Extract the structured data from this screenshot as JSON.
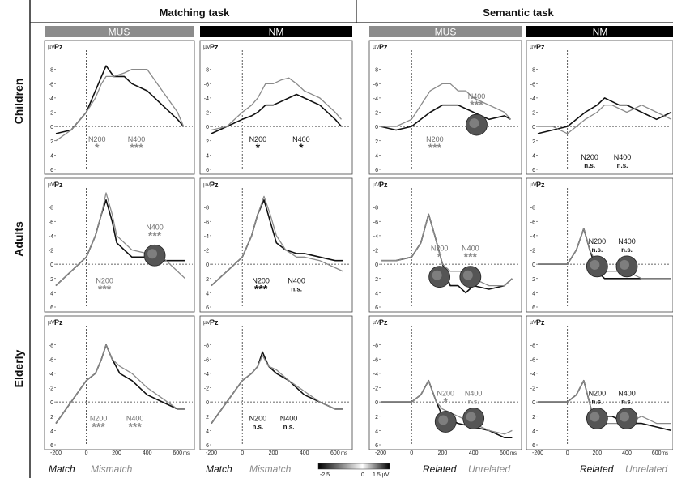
{
  "header": {
    "tasks": [
      "Matching task",
      "Semantic task"
    ],
    "conditions": [
      "MUS",
      "NM",
      "MUS",
      "NM"
    ]
  },
  "rows": [
    "Children",
    "Adults",
    "Elderly"
  ],
  "panel_text": {
    "electrode": "Pz",
    "unit": "µV",
    "y_ticks": [
      "-8",
      "-6",
      "-4",
      "-2",
      "0",
      "2",
      "4",
      "6"
    ],
    "x_ticks": [
      "-200",
      "0",
      "200",
      "400",
      "600"
    ],
    "x_unit": "ms"
  },
  "legends": {
    "matching_col1": [
      "Match",
      "Mismatch"
    ],
    "matching_col2": [
      "Match",
      "Mismatch"
    ],
    "semantic_col1": [
      "Related",
      "Unrelated"
    ],
    "semantic_col2": [
      "Related",
      "Unrelated"
    ]
  },
  "colorbar": {
    "min": "-2.5",
    "mid": "0",
    "max": "1.5 µV"
  },
  "colors": {
    "dark": "#111111",
    "light": "#8a8a8a",
    "mus_header": "#8c8c8c",
    "nm_header": "#000000"
  },
  "chart_data": [
    {
      "type": "line",
      "id": "children-matching-mus",
      "ylim": [
        6,
        -10
      ],
      "xlim": [
        -200,
        700
      ],
      "series": [
        {
          "color": "dark",
          "x": [
            -200,
            -100,
            0,
            60,
            100,
            130,
            180,
            250,
            300,
            400,
            500,
            600,
            640
          ],
          "values": [
            1,
            0.5,
            -2,
            -5,
            -7,
            -8.5,
            -7,
            -7,
            -6,
            -5,
            -3,
            -1,
            0
          ]
        },
        {
          "color": "light",
          "x": [
            -200,
            -100,
            0,
            60,
            100,
            130,
            180,
            250,
            300,
            400,
            500,
            600,
            640
          ],
          "values": [
            2,
            0.5,
            -2,
            -4,
            -6,
            -7,
            -7,
            -7.5,
            -8,
            -8,
            -5,
            -2,
            0
          ]
        }
      ],
      "annotations": [
        {
          "label": "N200",
          "stars": "*",
          "x": 70,
          "y": 1
        },
        {
          "label": "N400",
          "stars": "***",
          "x": 330,
          "y": 1
        }
      ]
    },
    {
      "type": "line",
      "id": "children-matching-nm",
      "ylim": [
        6,
        -10
      ],
      "xlim": [
        -200,
        700
      ],
      "series": [
        {
          "color": "dark",
          "x": [
            -200,
            -100,
            0,
            60,
            100,
            150,
            200,
            250,
            300,
            350,
            400,
            500,
            600,
            640
          ],
          "values": [
            1,
            0,
            -1,
            -1.5,
            -2,
            -3,
            -3,
            -3.5,
            -4,
            -4.5,
            -4,
            -3,
            -1,
            0
          ]
        },
        {
          "color": "light",
          "x": [
            -200,
            -100,
            0,
            60,
            100,
            150,
            200,
            250,
            300,
            350,
            400,
            500,
            600,
            640
          ],
          "values": [
            0.5,
            0,
            -2,
            -3,
            -4,
            -6,
            -6,
            -6.5,
            -6.8,
            -6,
            -5,
            -4,
            -2,
            -1
          ]
        }
      ],
      "annotations": [
        {
          "label": "N200",
          "stars": "*",
          "x": 100,
          "y": 1
        },
        {
          "label": "N400",
          "stars": "*",
          "x": 380,
          "y": 1
        }
      ]
    },
    {
      "type": "line",
      "id": "children-semantic-mus",
      "ylim": [
        6,
        -10
      ],
      "xlim": [
        -200,
        700
      ],
      "series": [
        {
          "color": "dark",
          "x": [
            -200,
            -100,
            0,
            60,
            120,
            200,
            250,
            300,
            350,
            400,
            500,
            600,
            640
          ],
          "values": [
            0,
            0.5,
            0,
            -1,
            -2,
            -3,
            -3,
            -3,
            -2.5,
            -2,
            -1,
            -1.5,
            -1
          ]
        },
        {
          "color": "light",
          "x": [
            -200,
            -100,
            0,
            60,
            120,
            200,
            250,
            300,
            350,
            400,
            500,
            600,
            640
          ],
          "values": [
            0,
            0,
            -1,
            -3,
            -5,
            -6,
            -6,
            -5,
            -5,
            -4,
            -3,
            -2,
            -1
          ]
        }
      ],
      "annotations": [
        {
          "label": "N200",
          "stars": "***",
          "x": 150,
          "y": 1
        },
        {
          "label": "N400",
          "stars": "***",
          "x": 420,
          "y": -5
        }
      ]
    },
    {
      "type": "line",
      "id": "children-semantic-nm",
      "ylim": [
        6,
        -10
      ],
      "xlim": [
        -200,
        700
      ],
      "series": [
        {
          "color": "dark",
          "x": [
            -200,
            -100,
            0,
            60,
            120,
            200,
            250,
            300,
            350,
            400,
            500,
            600,
            700
          ],
          "values": [
            1,
            0.5,
            0,
            -1,
            -2,
            -3,
            -4,
            -3.5,
            -3,
            -3,
            -2,
            -1,
            -2
          ]
        },
        {
          "color": "light",
          "x": [
            -200,
            -100,
            0,
            60,
            120,
            200,
            250,
            300,
            350,
            400,
            500,
            600,
            700
          ],
          "values": [
            0,
            0,
            1,
            0,
            -1,
            -2,
            -3,
            -3,
            -2.5,
            -2,
            -3,
            -2,
            -1
          ]
        }
      ],
      "annotations": [
        {
          "label": "N200",
          "stars": "n.s.",
          "x": 150,
          "y": 3.5
        },
        {
          "label": "N400",
          "stars": "n.s.",
          "x": 370,
          "y": 3.5
        }
      ]
    },
    {
      "type": "line",
      "id": "adults-matching-mus",
      "ylim": [
        6,
        -10
      ],
      "xlim": [
        -200,
        700
      ],
      "series": [
        {
          "color": "dark",
          "x": [
            -200,
            -100,
            0,
            60,
            100,
            130,
            170,
            200,
            250,
            300,
            400,
            500,
            600,
            650
          ],
          "values": [
            3,
            1,
            -1,
            -4,
            -7,
            -9,
            -6,
            -3,
            -2,
            -1,
            -1,
            -0.5,
            -0.5,
            -0.5
          ]
        },
        {
          "color": "light",
          "x": [
            -200,
            -100,
            0,
            60,
            100,
            130,
            170,
            200,
            250,
            300,
            400,
            500,
            600,
            650
          ],
          "values": [
            3,
            1,
            -1,
            -4,
            -7,
            -10,
            -7,
            -4,
            -3,
            -2,
            -1.5,
            -1,
            1,
            2
          ]
        }
      ],
      "annotations": [
        {
          "label": "N200",
          "stars": "***",
          "x": 120,
          "y": 1.5
        },
        {
          "label": "N400",
          "stars": "***",
          "x": 450,
          "y": -6
        }
      ]
    },
    {
      "type": "line",
      "id": "adults-matching-nm",
      "ylim": [
        6,
        -10
      ],
      "xlim": [
        -200,
        700
      ],
      "series": [
        {
          "color": "dark",
          "x": [
            -200,
            -100,
            0,
            60,
            100,
            140,
            180,
            220,
            280,
            350,
            400,
            500,
            600,
            650
          ],
          "values": [
            3,
            1,
            -1,
            -4,
            -7,
            -9,
            -6,
            -3,
            -2,
            -1.5,
            -1.5,
            -1,
            -0.5,
            -0.5
          ]
        },
        {
          "color": "light",
          "x": [
            -200,
            -100,
            0,
            60,
            100,
            140,
            180,
            220,
            280,
            350,
            400,
            500,
            600,
            650
          ],
          "values": [
            3,
            1,
            -1,
            -4,
            -7,
            -9.5,
            -7,
            -4,
            -2,
            -1,
            -1,
            -0.5,
            0.5,
            1
          ]
        }
      ],
      "annotations": [
        {
          "label": "N200",
          "stars": "***",
          "x": 120,
          "y": 1.5
        },
        {
          "label": "N400",
          "stars": "n.s.",
          "x": 350,
          "y": 1.5
        }
      ]
    },
    {
      "type": "line",
      "id": "adults-semantic-mus",
      "ylim": [
        6,
        -10
      ],
      "xlim": [
        -200,
        700
      ],
      "series": [
        {
          "color": "dark",
          "x": [
            -200,
            -100,
            0,
            60,
            110,
            150,
            200,
            250,
            300,
            350,
            400,
            500,
            600,
            650
          ],
          "values": [
            -0.5,
            -0.5,
            -1,
            -3,
            -7,
            -4,
            0,
            3,
            3,
            4,
            3,
            3.5,
            3,
            2
          ]
        },
        {
          "color": "light",
          "x": [
            -200,
            -100,
            0,
            60,
            110,
            150,
            200,
            250,
            300,
            350,
            400,
            500,
            600,
            650
          ],
          "values": [
            -0.5,
            -0.5,
            -1,
            -3,
            -7,
            -4,
            0,
            1,
            1,
            1,
            2,
            3,
            3,
            2
          ]
        }
      ],
      "annotations": [
        {
          "label": "N200",
          "stars": "*",
          "x": 180,
          "y": -3
        },
        {
          "label": "N400",
          "stars": "***",
          "x": 380,
          "y": -3
        }
      ]
    },
    {
      "type": "line",
      "id": "adults-semantic-nm",
      "ylim": [
        6,
        -10
      ],
      "xlim": [
        -200,
        700
      ],
      "series": [
        {
          "color": "dark",
          "x": [
            -200,
            -100,
            0,
            60,
            110,
            150,
            200,
            250,
            300,
            400,
            500,
            600,
            700
          ],
          "values": [
            0,
            0,
            0,
            -2,
            -5,
            -2,
            1,
            2,
            2,
            2,
            2,
            2,
            2
          ]
        },
        {
          "color": "light",
          "x": [
            -200,
            -100,
            0,
            60,
            110,
            150,
            200,
            250,
            300,
            400,
            500,
            600,
            700
          ],
          "values": [
            0,
            0,
            0,
            -2,
            -5,
            -2,
            0,
            1,
            1,
            1,
            2,
            2,
            2
          ]
        }
      ],
      "annotations": [
        {
          "label": "N200",
          "stars": "n.s.",
          "x": 200,
          "y": -4
        },
        {
          "label": "N400",
          "stars": "n.s.",
          "x": 400,
          "y": -4
        }
      ]
    },
    {
      "type": "line",
      "id": "elderly-matching-mus",
      "ylim": [
        6,
        -10
      ],
      "xlim": [
        -200,
        700
      ],
      "series": [
        {
          "color": "dark",
          "x": [
            -200,
            -100,
            0,
            60,
            100,
            130,
            170,
            220,
            300,
            400,
            500,
            600,
            650
          ],
          "values": [
            3,
            0,
            -3,
            -4,
            -6,
            -8,
            -6,
            -4,
            -3,
            -1,
            0,
            1,
            1
          ]
        },
        {
          "color": "light",
          "x": [
            -200,
            -100,
            0,
            60,
            100,
            130,
            170,
            220,
            300,
            400,
            500,
            600,
            650
          ],
          "values": [
            3,
            0,
            -3,
            -4,
            -6,
            -8,
            -6,
            -5,
            -4,
            -2,
            -0.5,
            1,
            1
          ]
        }
      ],
      "annotations": [
        {
          "label": "N200",
          "stars": "***",
          "x": 80,
          "y": 1.5
        },
        {
          "label": "N400",
          "stars": "***",
          "x": 320,
          "y": 1.5
        }
      ]
    },
    {
      "type": "line",
      "id": "elderly-matching-nm",
      "ylim": [
        6,
        -10
      ],
      "xlim": [
        -200,
        700
      ],
      "series": [
        {
          "color": "dark",
          "x": [
            -200,
            -100,
            0,
            60,
            100,
            130,
            170,
            220,
            300,
            400,
            500,
            600,
            650
          ],
          "values": [
            3,
            0,
            -3,
            -4,
            -5,
            -7,
            -5,
            -4,
            -3,
            -1,
            0,
            1,
            1
          ]
        },
        {
          "color": "light",
          "x": [
            -200,
            -100,
            0,
            60,
            100,
            130,
            170,
            220,
            300,
            400,
            500,
            600,
            650
          ],
          "values": [
            3,
            0,
            -3,
            -4,
            -5,
            -6.5,
            -5,
            -4.5,
            -3,
            -1.5,
            0,
            1,
            1
          ]
        }
      ],
      "annotations": [
        {
          "label": "N200",
          "stars": "n.s.",
          "x": 100,
          "y": 1.5
        },
        {
          "label": "N400",
          "stars": "n.s.",
          "x": 300,
          "y": 1.5
        }
      ]
    },
    {
      "type": "line",
      "id": "elderly-semantic-mus",
      "ylim": [
        6,
        -10
      ],
      "xlim": [
        -200,
        700
      ],
      "series": [
        {
          "color": "dark",
          "x": [
            -200,
            -100,
            0,
            60,
            110,
            160,
            200,
            300,
            400,
            500,
            600,
            650
          ],
          "values": [
            0,
            0,
            0,
            -1,
            -3,
            0,
            2,
            3,
            3.5,
            4,
            5,
            5
          ]
        },
        {
          "color": "light",
          "x": [
            -200,
            -100,
            0,
            60,
            110,
            160,
            200,
            300,
            400,
            500,
            600,
            650
          ],
          "values": [
            0,
            0,
            0,
            -1,
            -3,
            0,
            1,
            2,
            3,
            4,
            4.5,
            4
          ]
        }
      ],
      "annotations": [
        {
          "label": "N200",
          "stars": "*",
          "x": 220,
          "y": -2
        },
        {
          "label": "N400",
          "stars": "n.s.",
          "x": 400,
          "y": -2
        }
      ]
    },
    {
      "type": "line",
      "id": "elderly-semantic-nm",
      "ylim": [
        6,
        -10
      ],
      "xlim": [
        -200,
        700
      ],
      "series": [
        {
          "color": "dark",
          "x": [
            -200,
            -100,
            0,
            60,
            110,
            160,
            220,
            300,
            400,
            500,
            600,
            700
          ],
          "values": [
            0,
            0,
            0,
            -1,
            -3,
            1,
            2,
            2,
            3,
            3,
            3.5,
            4
          ]
        },
        {
          "color": "light",
          "x": [
            -200,
            -100,
            0,
            60,
            110,
            160,
            220,
            300,
            400,
            500,
            600,
            700
          ],
          "values": [
            0,
            0,
            0,
            -1,
            -3,
            1,
            3,
            3,
            3,
            2,
            3,
            3
          ]
        }
      ],
      "annotations": [
        {
          "label": "N200",
          "stars": "n.s.",
          "x": 200,
          "y": -2
        },
        {
          "label": "N400",
          "stars": "n.s.",
          "x": 400,
          "y": -2
        }
      ]
    }
  ]
}
